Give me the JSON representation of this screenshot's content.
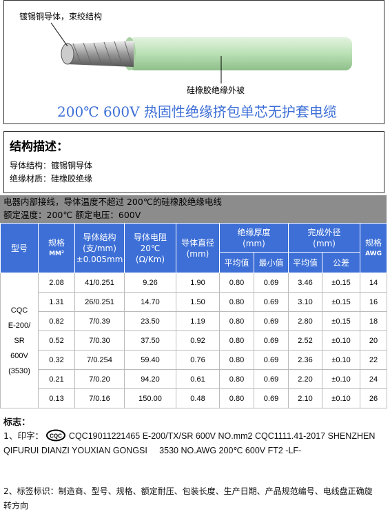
{
  "figure": {
    "conductor_label": "镀锡铜导体，束绞结构",
    "insulation_label": "硅橡胶绝缘外被",
    "title": "200℃  600V 热固性绝缘挤包单芯无护套电缆"
  },
  "structure": {
    "heading": "结构描述：",
    "lines": [
      "导体结构：镀锡铜导体",
      "绝缘材质：硅橡胶绝缘"
    ]
  },
  "summary": {
    "lines": [
      "电器内部接线，导体温度不超过 200℃的硅橡胶绝缘电线",
      "额定温度：200℃  额定电压：600V"
    ]
  },
  "table": {
    "header_row1": [
      [
        "型号"
      ],
      [
        "规格",
        "MM²"
      ],
      [
        "导体结构",
        "(支/mm)",
        "±0.005mm"
      ],
      [
        "导体电阻",
        "20℃",
        "(Ω/Km)"
      ],
      [
        "导体直径(mm)"
      ],
      [
        "绝缘厚度",
        "(mm)"
      ],
      [
        "完成外径",
        "(mm)"
      ],
      [
        "规格",
        "AWG"
      ]
    ],
    "header_row2": [
      "平均值",
      "最小值",
      "平均值",
      "公差"
    ],
    "model": [
      "CQC",
      "E-200/",
      "SR",
      "600V",
      "(3530)"
    ],
    "rows": [
      [
        "2.08",
        "41/0.251",
        "9.26",
        "1.90",
        "0.80",
        "0.69",
        "3.46",
        "±0.15",
        "14"
      ],
      [
        "1.31",
        "26/0.251",
        "14.70",
        "1.50",
        "0.80",
        "0.69",
        "3.10",
        "±0.15",
        "16"
      ],
      [
        "0.82",
        "7/0.39",
        "23.50",
        "1.19",
        "0.80",
        "0.69",
        "2.80",
        "±0.15",
        "18"
      ],
      [
        "0.52",
        "7/0.30",
        "37.50",
        "0.92",
        "0.80",
        "0.69",
        "2.52",
        "±0.10",
        "20"
      ],
      [
        "0.32",
        "7/0.254",
        "59.40",
        "0.76",
        "0.80",
        "0.69",
        "2.36",
        "±0.10",
        "22"
      ],
      [
        "0.21",
        "7/0.20",
        "94.20",
        "0.61",
        "0.80",
        "0.69",
        "2.20",
        "±0.10",
        "24"
      ],
      [
        "0.13",
        "7/0.16",
        "150.00",
        "0.48",
        "0.80",
        "0.69",
        "2.10",
        "±0.10",
        "26"
      ]
    ]
  },
  "marking": {
    "heading": "标志：",
    "item1_prefix": "1、印字：",
    "logo": "CQC",
    "item1_text": "CQC19011221465 E-200/TX/SR 600V NO.mm2 CQC1111.41-2017 SHENZHEN QIFURUI DIANZI YOUXIAN GONGSI     3530 NO.AWG 200℃ 600V FT2 -LF-",
    "item2": "2、标签标识：制造商、型号、规格、额定耐压、包装长度、生产日期、产品规范编号、电线盘正确旋转方向"
  }
}
